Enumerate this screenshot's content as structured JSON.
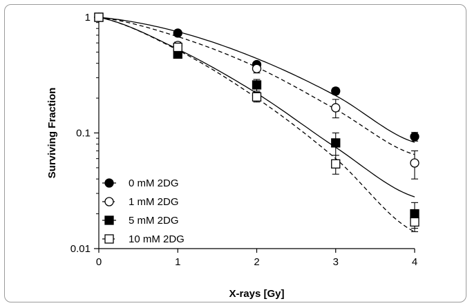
{
  "chart_data": {
    "type": "scatter",
    "title": "",
    "xlabel": "X-rays [Gy]",
    "ylabel": "Surviving Fraction",
    "xlim": [
      0,
      4
    ],
    "ylim": [
      0.01,
      1
    ],
    "yscale": "log",
    "grid": false,
    "legend_position": "bottom-left",
    "x_ticks": [
      "0",
      "1",
      "2",
      "3",
      "4"
    ],
    "x_tick_values": [
      0,
      1,
      2,
      3,
      4
    ],
    "y_ticks": [
      "0.01",
      "0.1",
      "1"
    ],
    "y_tick_values": [
      0.01,
      0.1,
      1
    ],
    "x": [
      0,
      1,
      2,
      3,
      4
    ],
    "series": [
      {
        "name": "0 mM 2DG",
        "marker": "filled-circle",
        "line": "solid",
        "values": [
          1,
          0.73,
          0.39,
          0.23,
          0.093
        ],
        "err": [
          0,
          0.03,
          0.02,
          0.015,
          0.008
        ],
        "fit": [
          1,
          0.75,
          0.44,
          0.21,
          0.083
        ]
      },
      {
        "name": "1 mM 2DG",
        "marker": "open-circle",
        "line": "dashed",
        "values": [
          1,
          0.57,
          0.36,
          0.165,
          0.055
        ],
        "err": [
          0,
          0.04,
          0.03,
          0.03,
          0.015
        ],
        "fit": [
          1,
          0.68,
          0.37,
          0.16,
          0.065
        ]
      },
      {
        "name": "5 mM 2DG",
        "marker": "filled-square",
        "line": "solid",
        "values": [
          1,
          0.48,
          0.26,
          0.082,
          0.02
        ],
        "err": [
          0,
          0.03,
          0.03,
          0.018,
          0.005
        ],
        "fit": [
          1,
          0.53,
          0.22,
          0.075,
          0.028
        ]
      },
      {
        "name": "10 mM 2DG",
        "marker": "open-square",
        "line": "dashed",
        "values": [
          1,
          0.55,
          0.205,
          0.054,
          0.017
        ],
        "err": [
          0,
          0.03,
          0.02,
          0.01,
          0.003
        ],
        "fit": [
          1,
          0.52,
          0.2,
          0.06,
          0.014
        ]
      }
    ],
    "colors": {
      "marker": "#000000",
      "axis": "#000000",
      "frame": "#9a9a9a"
    }
  }
}
